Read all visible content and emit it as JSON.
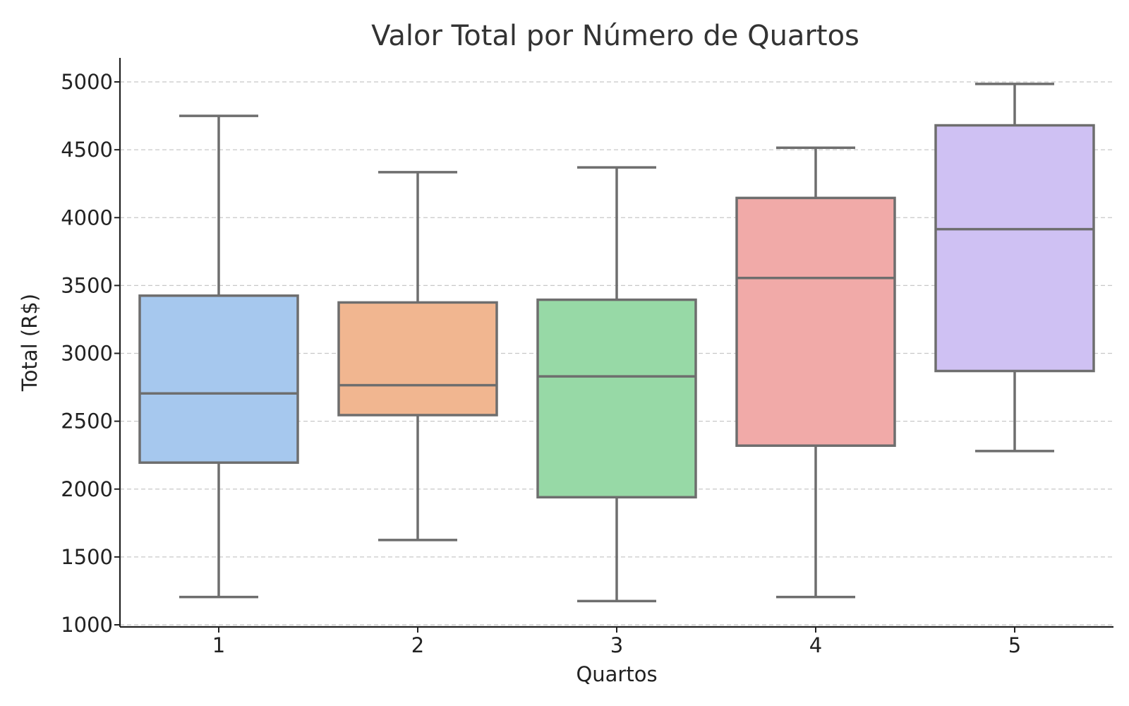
{
  "chart_data": {
    "type": "box",
    "title": "Valor Total por Número de Quartos",
    "xlabel": "Quartos",
    "ylabel": "Total (R$)",
    "ylim": [
      1000,
      5150
    ],
    "yticks": [
      1000,
      1500,
      2000,
      2500,
      3000,
      3500,
      4000,
      4500,
      5000
    ],
    "grid": true,
    "categories": [
      "1",
      "2",
      "3",
      "4",
      "5"
    ],
    "boxes": [
      {
        "category": "1",
        "whisker_low": 1205,
        "q1": 2195,
        "median": 2705,
        "q3": 3425,
        "whisker_high": 4750,
        "color": "#a6c8ee"
      },
      {
        "category": "2",
        "whisker_low": 1625,
        "q1": 2545,
        "median": 2765,
        "q3": 3375,
        "whisker_high": 4335,
        "color": "#f1b690"
      },
      {
        "category": "3",
        "whisker_low": 1175,
        "q1": 1940,
        "median": 2830,
        "q3": 3395,
        "whisker_high": 4370,
        "color": "#97d9a6"
      },
      {
        "category": "4",
        "whisker_low": 1205,
        "q1": 2320,
        "median": 3555,
        "q3": 4145,
        "whisker_high": 4515,
        "color": "#f1aaa8"
      },
      {
        "category": "5",
        "whisker_low": 2280,
        "q1": 2870,
        "median": 3915,
        "q3": 4680,
        "whisker_high": 4985,
        "color": "#cfc1f3"
      }
    ]
  }
}
